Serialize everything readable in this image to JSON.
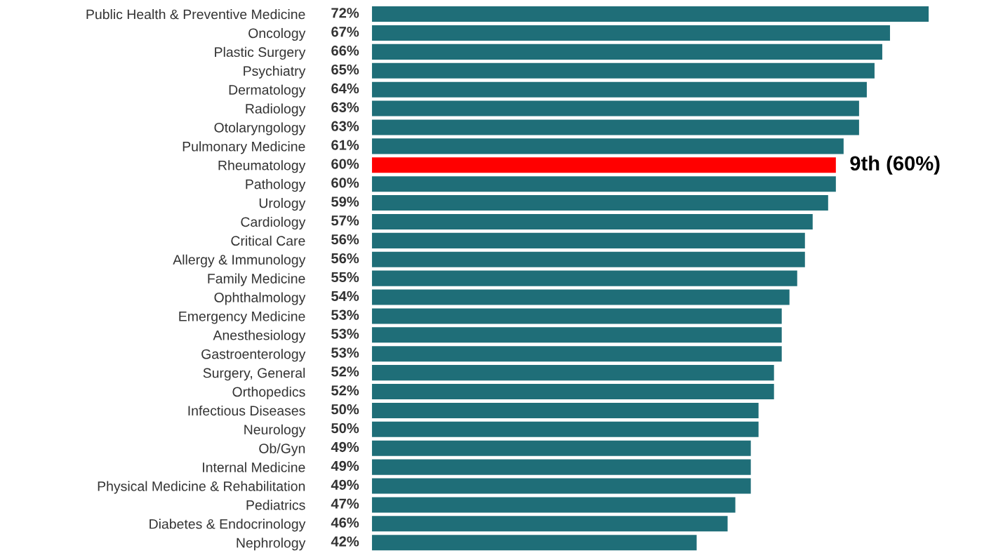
{
  "chart_data": {
    "type": "bar",
    "orientation": "horizontal",
    "categories": [
      "Public Health & Preventive Medicine",
      "Oncology",
      "Plastic Surgery",
      "Psychiatry",
      "Dermatology",
      "Radiology",
      "Otolaryngology",
      "Pulmonary Medicine",
      "Rheumatology",
      "Pathology",
      "Urology",
      "Cardiology",
      "Critical Care",
      "Allergy & Immunology",
      "Family Medicine",
      "Ophthalmology",
      "Emergency Medicine",
      "Anesthesiology",
      "Gastroenterology",
      "Surgery, General",
      "Orthopedics",
      "Infectious Diseases",
      "Neurology",
      "Ob/Gyn",
      "Internal Medicine",
      "Physical Medicine & Rehabilitation",
      "Pediatrics",
      "Diabetes & Endocrinology",
      "Nephrology"
    ],
    "values": [
      72,
      67,
      66,
      65,
      64,
      63,
      63,
      61,
      60,
      60,
      59,
      57,
      56,
      56,
      55,
      54,
      53,
      53,
      53,
      52,
      52,
      50,
      50,
      49,
      49,
      49,
      47,
      46,
      42
    ],
    "value_labels": [
      "72%",
      "67%",
      "66%",
      "65%",
      "64%",
      "63%",
      "63%",
      "61%",
      "60%",
      "60%",
      "59%",
      "57%",
      "56%",
      "56%",
      "55%",
      "54%",
      "53%",
      "53%",
      "53%",
      "52%",
      "52%",
      "50%",
      "50%",
      "49%",
      "49%",
      "49%",
      "47%",
      "46%",
      "42%"
    ],
    "colors": [
      "#1f6e78",
      "#1f6e78",
      "#1f6e78",
      "#1f6e78",
      "#1f6e78",
      "#1f6e78",
      "#1f6e78",
      "#1f6e78",
      "#ff0000",
      "#1f6e78",
      "#1f6e78",
      "#1f6e78",
      "#1f6e78",
      "#1f6e78",
      "#1f6e78",
      "#1f6e78",
      "#1f6e78",
      "#1f6e78",
      "#1f6e78",
      "#1f6e78",
      "#1f6e78",
      "#1f6e78",
      "#1f6e78",
      "#1f6e78",
      "#1f6e78",
      "#1f6e78",
      "#1f6e78",
      "#1f6e78",
      "#1f6e78"
    ],
    "annotations": [
      {
        "text": "9th (60%)",
        "x": 60,
        "y": "Rheumatology"
      }
    ],
    "grid": false,
    "legend": false
  }
}
